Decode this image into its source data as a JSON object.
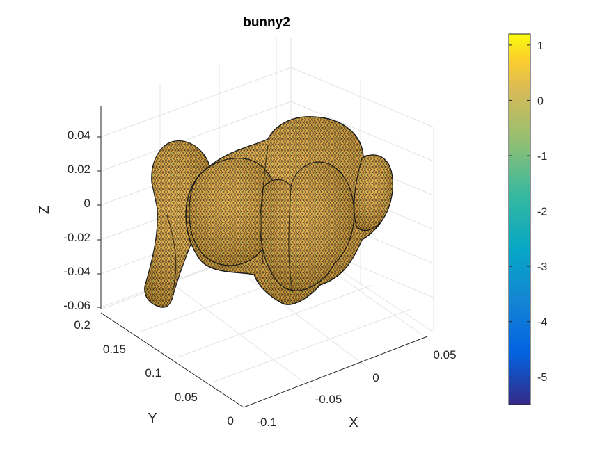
{
  "chart_data": {
    "type": "surface-mesh",
    "title": "bunny2",
    "xlabel": "X",
    "ylabel": "Y",
    "zlabel": "Z",
    "x_ticks": [
      "-0.1",
      "-0.05",
      "0",
      "0.05"
    ],
    "y_ticks": [
      "0",
      "0.05",
      "0.1",
      "0.15",
      "0.2"
    ],
    "z_ticks": [
      "0.04",
      "0.02",
      "0",
      "-0.02",
      "-0.04",
      "-0.06"
    ],
    "colorbar": {
      "ticks": [
        "1",
        "0",
        "-1",
        "-2",
        "-3",
        "-4",
        "-5"
      ],
      "min": -5.5,
      "max": 1.2,
      "colormap": "parula"
    },
    "grid": true,
    "legend": "none",
    "surface_color": "#f3b33a",
    "edge_color": "#000000"
  }
}
